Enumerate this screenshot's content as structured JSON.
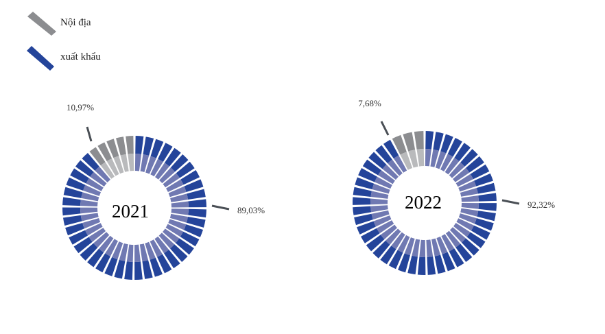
{
  "legend": [
    {
      "label": "Nội địa",
      "color": "#8c8d90"
    },
    {
      "label": "xuất khẩu",
      "color": "#24449a"
    }
  ],
  "chart_data": [
    {
      "type": "pie",
      "title": "2021",
      "series": [
        {
          "name": "Nội địa",
          "value": 10.97,
          "label": "10,97%"
        },
        {
          "name": "xuất khẩu",
          "value": 89.03,
          "label": "89,03%"
        }
      ]
    },
    {
      "type": "pie",
      "title": "2022",
      "series": [
        {
          "name": "Nội địa",
          "value": 7.68,
          "label": "7,68%"
        },
        {
          "name": "xuất khẩu",
          "value": 92.32,
          "label": "92,32%"
        }
      ]
    }
  ],
  "colors": {
    "domestic_outer": "#8c8d90",
    "domestic_inner": "#b9babc",
    "export_outer": "#24449a",
    "export_inner": "#7079b2",
    "leader": "#4a4f55"
  }
}
